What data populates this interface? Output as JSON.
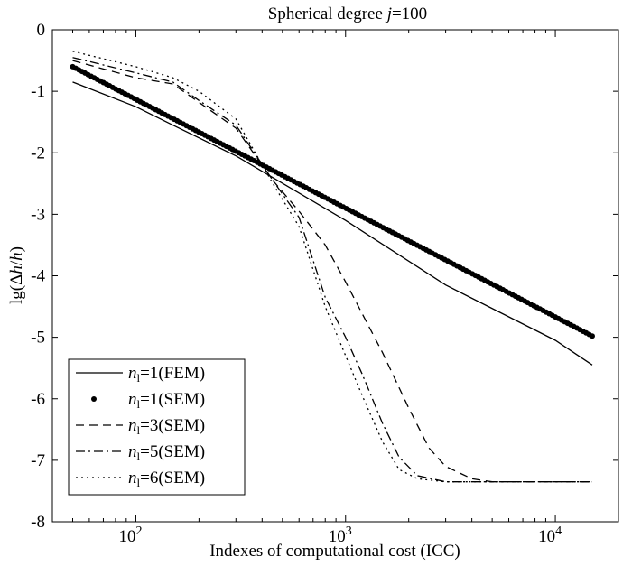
{
  "chart_data": {
    "type": "line",
    "title_prefix": "Spherical degree ",
    "title_var": "j",
    "title_suffix": "=100",
    "xlabel": "Indexes of computational cost (ICC)",
    "ylabel_prefix": "lg(",
    "ylabel_delta": "Δ",
    "ylabel_h1": "h",
    "ylabel_slash": "/",
    "ylabel_h2": "h",
    "ylabel_suffix": ")",
    "xscale": "log",
    "xlim": [
      40,
      20000
    ],
    "ylim": [
      -8,
      0
    ],
    "yticks": [
      "0",
      "-1",
      "-2",
      "-3",
      "-4",
      "-5",
      "-6",
      "-7",
      "-8"
    ],
    "xticks": [
      {
        "base": "10",
        "exp": "2",
        "value": 100
      },
      {
        "base": "10",
        "exp": "3",
        "value": 1000
      },
      {
        "base": "10",
        "exp": "4",
        "value": 10000
      }
    ],
    "legend_position": "bottom-left",
    "series": [
      {
        "var": "n",
        "sub": "l",
        "eq": "=1(FEM)",
        "style": "solid",
        "x": [
          50,
          100,
          150,
          300,
          1000,
          3000,
          10000,
          15000
        ],
        "y": [
          -0.85,
          -1.25,
          -1.55,
          -2.05,
          -3.1,
          -4.15,
          -5.05,
          -5.45
        ]
      },
      {
        "var": "n",
        "sub": "l",
        "eq": "=1(SEM)",
        "style": "dots",
        "x_start": 50,
        "x_end": 15000,
        "count": 170,
        "y_at_x0": -0.6,
        "y_at_x1": -4.98
      },
      {
        "var": "n",
        "sub": "l",
        "eq": "=3(SEM)",
        "style": "dashed",
        "x": [
          50,
          100,
          150,
          200,
          300,
          450,
          600,
          800,
          1000,
          1500,
          2000,
          2500,
          3000,
          4000,
          5000,
          8000,
          15000
        ],
        "y": [
          -0.5,
          -0.78,
          -0.88,
          -1.18,
          -1.6,
          -2.45,
          -2.95,
          -3.5,
          -4.1,
          -5.25,
          -6.15,
          -6.8,
          -7.1,
          -7.3,
          -7.35,
          -7.35,
          -7.35
        ]
      },
      {
        "var": "n",
        "sub": "l",
        "eq": "=5(SEM)",
        "style": "dashdot",
        "x": [
          50,
          100,
          150,
          200,
          300,
          450,
          600,
          800,
          1000,
          1200,
          1500,
          1800,
          2200,
          3000,
          5000,
          15000
        ],
        "y": [
          -0.45,
          -0.7,
          -0.85,
          -1.15,
          -1.55,
          -2.45,
          -3.05,
          -4.35,
          -5.0,
          -5.6,
          -6.4,
          -6.95,
          -7.25,
          -7.35,
          -7.35,
          -7.35
        ]
      },
      {
        "var": "n",
        "sub": "l",
        "eq": "=6(SEM)",
        "style": "dotted",
        "x": [
          50,
          100,
          150,
          200,
          300,
          450,
          600,
          800,
          1000,
          1200,
          1500,
          1800,
          2200,
          3000,
          5000,
          15000
        ],
        "y": [
          -0.35,
          -0.6,
          -0.78,
          -1.0,
          -1.45,
          -2.5,
          -3.2,
          -4.5,
          -5.3,
          -5.95,
          -6.7,
          -7.15,
          -7.3,
          -7.35,
          -7.35,
          -7.35
        ]
      }
    ]
  }
}
